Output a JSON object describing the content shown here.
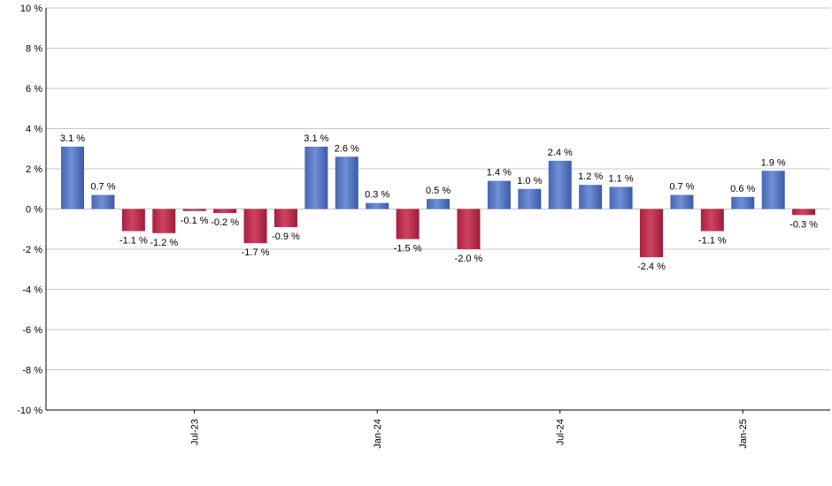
{
  "chart_data": {
    "type": "bar",
    "categories": [
      null,
      null,
      null,
      null,
      "Jul-23",
      null,
      null,
      null,
      null,
      null,
      "Jan-24",
      null,
      null,
      null,
      null,
      null,
      "Jul-24",
      null,
      null,
      null,
      null,
      null,
      "Jan-25",
      null,
      null
    ],
    "values": [
      3.1,
      0.7,
      -1.1,
      -1.2,
      -0.1,
      -0.2,
      -1.7,
      -0.9,
      3.1,
      2.6,
      0.3,
      -1.5,
      0.5,
      -2.0,
      1.4,
      1.0,
      2.4,
      1.2,
      1.1,
      -2.4,
      0.7,
      -1.1,
      0.6,
      1.9,
      -0.3
    ],
    "value_labels": [
      "3.1 %",
      "0.7 %",
      "-1.1 %",
      "-1.2 %",
      "-0.1 %",
      "-0.2 %",
      "-1.7 %",
      "-0.9 %",
      "3.1 %",
      "2.6 %",
      "0.3 %",
      "-1.5 %",
      "0.5 %",
      "-2.0 %",
      "1.4 %",
      "1.0 %",
      "2.4 %",
      "1.2 %",
      "1.1 %",
      "-2.4 %",
      "0.7 %",
      "-1.1 %",
      "0.6 %",
      "1.9 %",
      "-0.3 %"
    ],
    "positive_color": "#6f8fd8",
    "negative_color": "#d0435f",
    "ylim": [
      -10,
      10
    ],
    "yticks": [
      {
        "value": -10,
        "label": "-10 %"
      },
      {
        "value": -8,
        "label": "-8 %"
      },
      {
        "value": -6,
        "label": "-6 %"
      },
      {
        "value": -4,
        "label": "-4 %"
      },
      {
        "value": -2,
        "label": "-2 %"
      },
      {
        "value": 0,
        "label": "0 %"
      },
      {
        "value": 2,
        "label": "2 %"
      },
      {
        "value": 4,
        "label": "4 %"
      },
      {
        "value": 6,
        "label": "6 %"
      },
      {
        "value": 8,
        "label": "8 %"
      },
      {
        "value": 10,
        "label": "10 %"
      }
    ],
    "grid": true
  }
}
